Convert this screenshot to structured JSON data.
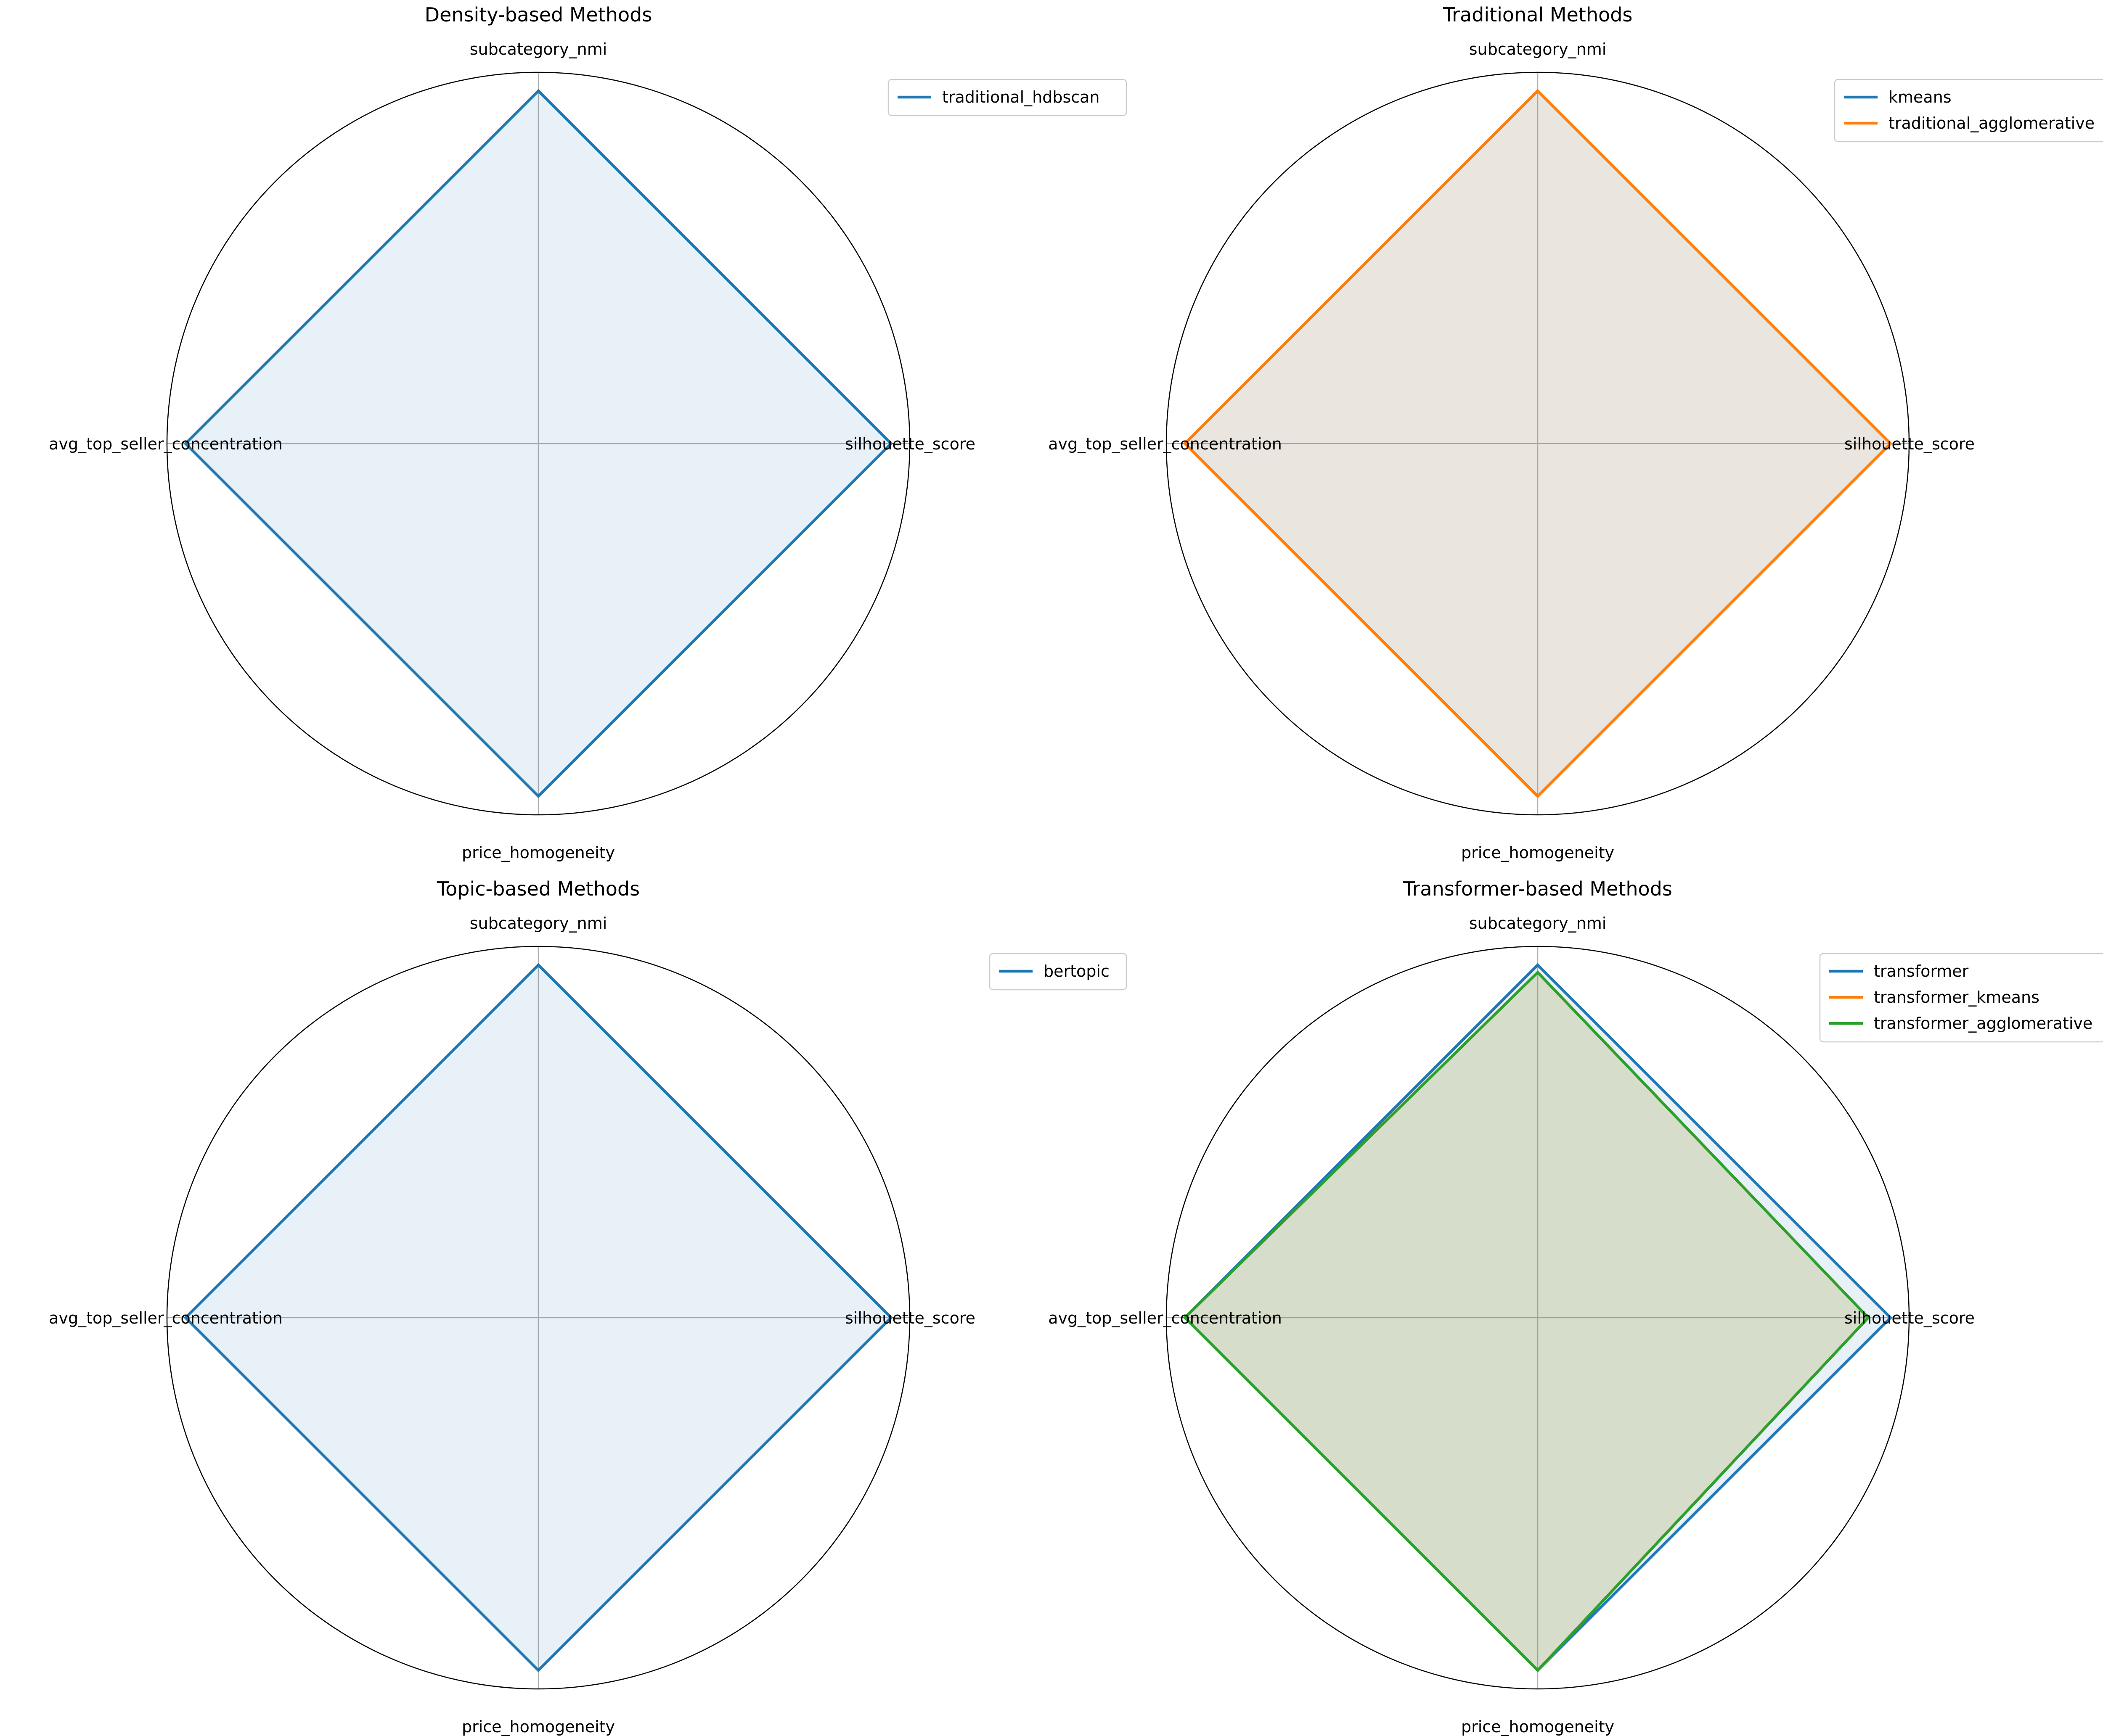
{
  "chart_data": [
    {
      "type": "radar",
      "title": "Density-based Methods",
      "axes": [
        "subcategory_nmi",
        "silhouette_score",
        "price_homogeneity",
        "avg_top_seller_concentration"
      ],
      "rlim": [
        0,
        1
      ],
      "grid": true,
      "legend_position": "upper-right",
      "series": [
        {
          "name": "traditional_hdbscan",
          "color": "#1f77b4",
          "values": [
            0.95,
            0.95,
            0.95,
            0.95
          ]
        }
      ]
    },
    {
      "type": "radar",
      "title": "Traditional Methods",
      "axes": [
        "subcategory_nmi",
        "silhouette_score",
        "price_homogeneity",
        "avg_top_seller_concentration"
      ],
      "rlim": [
        0,
        1
      ],
      "grid": true,
      "legend_position": "upper-right",
      "series": [
        {
          "name": "kmeans",
          "color": "#1f77b4",
          "values": [
            0.95,
            0.95,
            0.95,
            0.95
          ]
        },
        {
          "name": "traditional_agglomerative",
          "color": "#ff7f0e",
          "values": [
            0.95,
            0.95,
            0.95,
            0.95
          ]
        }
      ]
    },
    {
      "type": "radar",
      "title": "Topic-based Methods",
      "axes": [
        "subcategory_nmi",
        "silhouette_score",
        "price_homogeneity",
        "avg_top_seller_concentration"
      ],
      "rlim": [
        0,
        1
      ],
      "grid": true,
      "legend_position": "upper-right",
      "series": [
        {
          "name": "bertopic",
          "color": "#1f77b4",
          "values": [
            0.95,
            0.95,
            0.95,
            0.95
          ]
        }
      ]
    },
    {
      "type": "radar",
      "title": "Transformer-based Methods",
      "axes": [
        "subcategory_nmi",
        "silhouette_score",
        "price_homogeneity",
        "avg_top_seller_concentration"
      ],
      "rlim": [
        0,
        1
      ],
      "grid": true,
      "legend_position": "upper-right",
      "series": [
        {
          "name": "transformer",
          "color": "#1f77b4",
          "values": [
            0.95,
            0.95,
            0.95,
            0.95
          ]
        },
        {
          "name": "transformer_kmeans",
          "color": "#ff7f0e",
          "values": [
            0.93,
            0.89,
            0.95,
            0.95
          ]
        },
        {
          "name": "transformer_agglomerative",
          "color": "#2ca02c",
          "values": [
            0.93,
            0.89,
            0.95,
            0.95
          ]
        }
      ]
    }
  ]
}
